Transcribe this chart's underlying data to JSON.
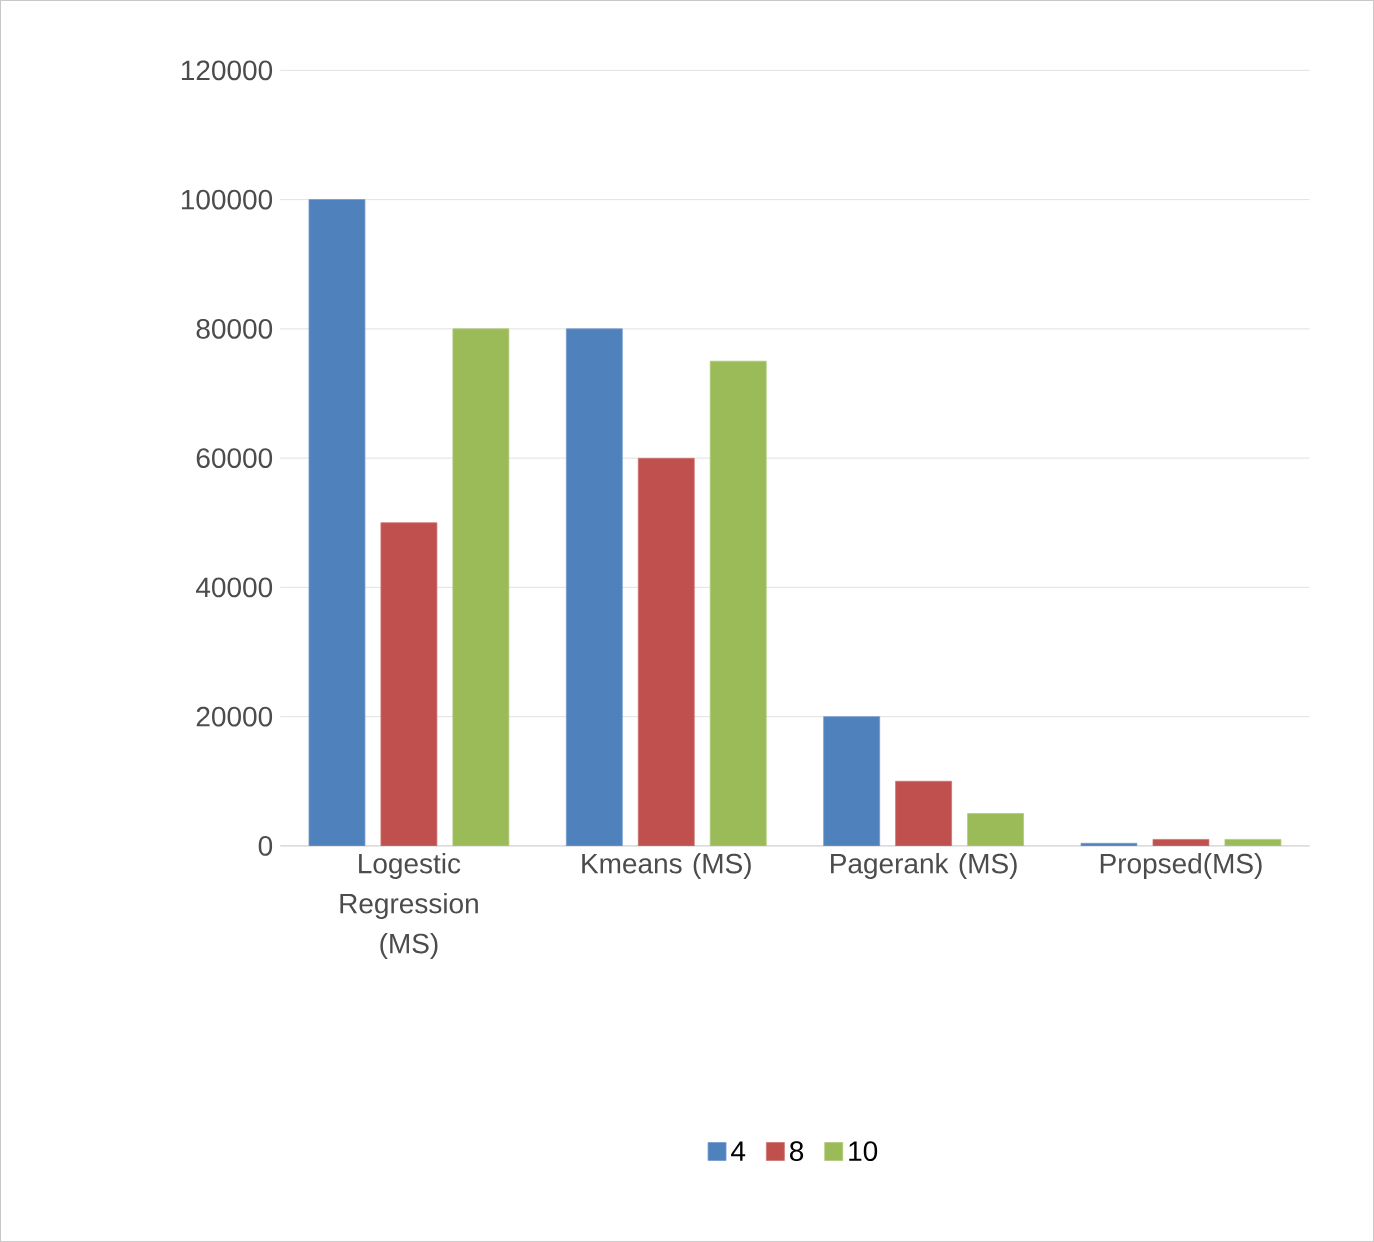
{
  "chart_data": {
    "type": "bar",
    "categories": [
      "Logestic Regression (MS)",
      "Kmeans (MS)",
      "Pagerank (MS)",
      "Propsed(MS)"
    ],
    "series": [
      {
        "name": "4",
        "color": "#4f81bd",
        "values": [
          100000,
          80000,
          20000,
          400
        ]
      },
      {
        "name": "8",
        "color": "#c0504d",
        "values": [
          50000,
          60000,
          10000,
          1000
        ]
      },
      {
        "name": "10",
        "color": "#9bbb59",
        "values": [
          80000,
          75000,
          5000,
          1000
        ]
      }
    ],
    "ylim": [
      0,
      120000
    ],
    "yticks": [
      0,
      20000,
      40000,
      60000,
      80000,
      100000,
      120000
    ],
    "grid": "y",
    "legend": "bottom"
  }
}
